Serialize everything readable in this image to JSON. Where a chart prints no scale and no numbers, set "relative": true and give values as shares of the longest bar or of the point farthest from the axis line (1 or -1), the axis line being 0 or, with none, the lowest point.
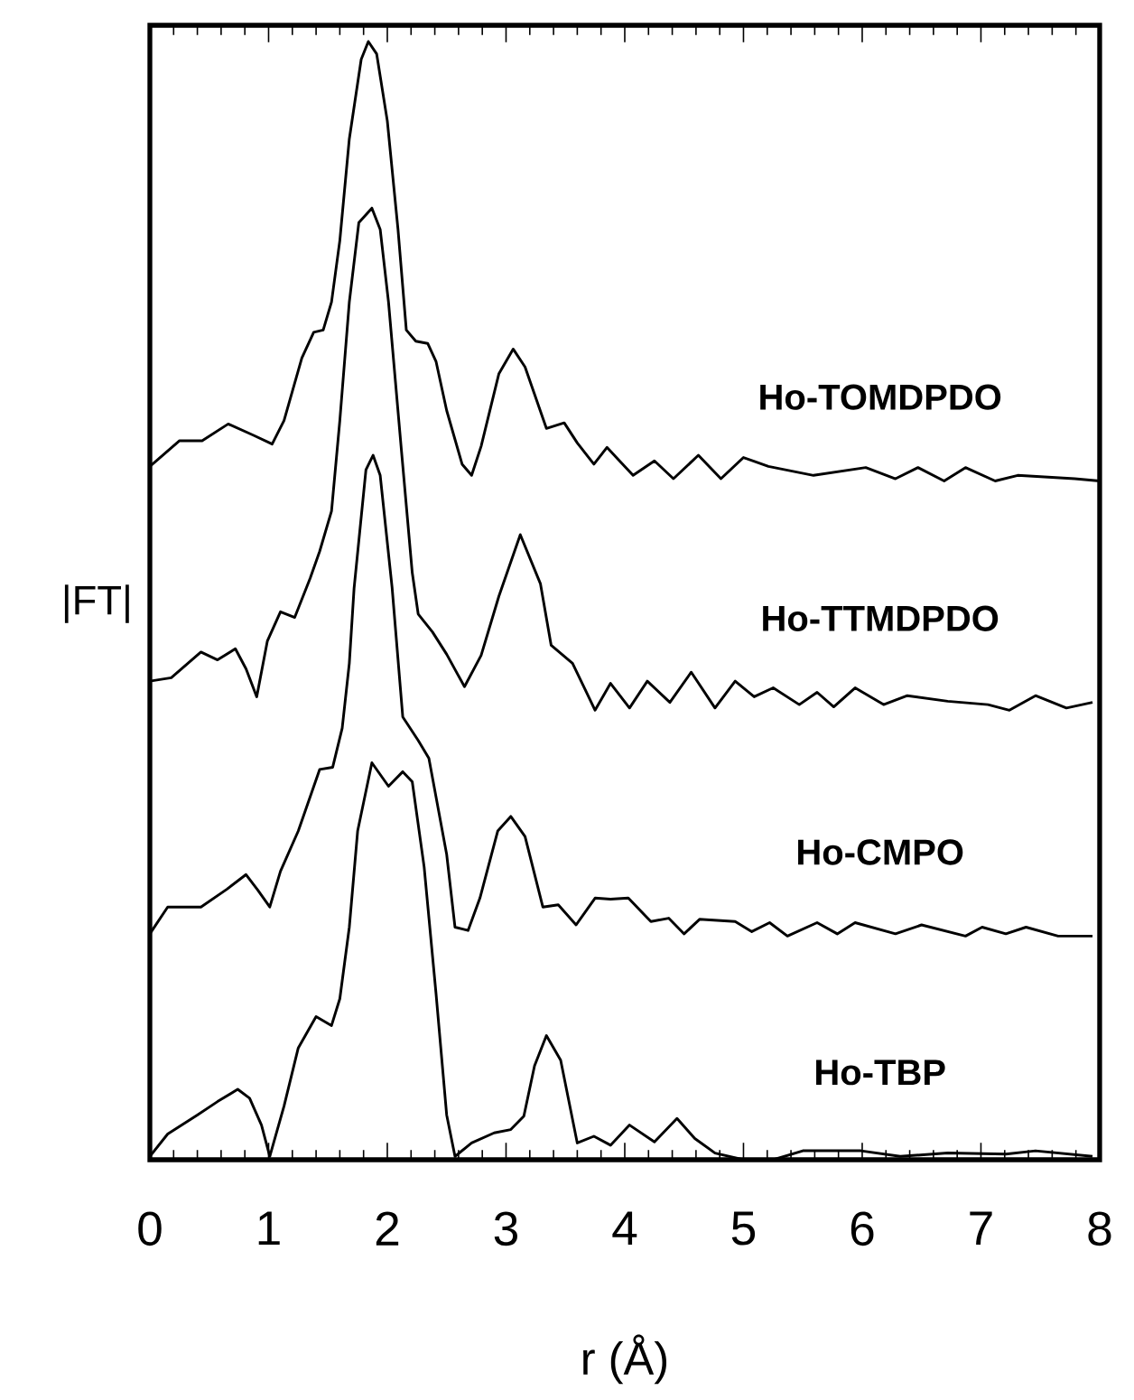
{
  "chart_data": {
    "type": "line",
    "relative": true,
    "xlabel": "r (Å)",
    "ylabel": "|FT|",
    "xlim": [
      0,
      8
    ],
    "xticks": [
      0,
      1,
      2,
      3,
      4,
      5,
      6,
      7,
      8
    ],
    "tick_labels": "x",
    "marker": "none",
    "line_style": "solid",
    "series": [
      {
        "name": "Ho-TOMDPDO",
        "color": "#000000",
        "x": [
          0.0,
          0.25,
          0.44,
          0.66,
          0.87,
          1.03,
          1.13,
          1.28,
          1.38,
          1.46,
          1.53,
          1.6,
          1.68,
          1.78,
          1.84,
          1.91,
          2.0,
          2.09,
          2.16,
          2.24,
          2.34,
          2.41,
          2.5,
          2.63,
          2.71,
          2.79,
          2.94,
          3.06,
          3.16,
          3.34,
          3.49,
          3.6,
          3.74,
          3.85,
          4.07,
          4.25,
          4.41,
          4.62,
          4.81,
          5.0,
          5.21,
          5.59,
          6.03,
          6.28,
          6.47,
          6.69,
          6.87,
          7.12,
          7.31,
          7.79,
          8.0
        ],
        "values": [
          0.62,
          0.643,
          0.643,
          0.658,
          0.648,
          0.64,
          0.661,
          0.717,
          0.74,
          0.742,
          0.767,
          0.822,
          0.913,
          0.984,
          1.0,
          0.989,
          0.929,
          0.832,
          0.742,
          0.732,
          0.73,
          0.714,
          0.67,
          0.622,
          0.612,
          0.638,
          0.703,
          0.725,
          0.709,
          0.654,
          0.659,
          0.641,
          0.622,
          0.637,
          0.612,
          0.625,
          0.609,
          0.63,
          0.609,
          0.628,
          0.62,
          0.612,
          0.619,
          0.609,
          0.619,
          0.607,
          0.619,
          0.607,
          0.612,
          0.609,
          0.607
        ]
      },
      {
        "name": "Ho-TTMDPDO",
        "color": "#000000",
        "x": [
          0.0,
          0.18,
          0.43,
          0.57,
          0.72,
          0.81,
          0.9,
          0.99,
          1.1,
          1.22,
          1.35,
          1.43,
          1.53,
          1.6,
          1.68,
          1.76,
          1.87,
          1.94,
          2.01,
          2.12,
          2.21,
          2.26,
          2.38,
          2.5,
          2.65,
          2.79,
          2.94,
          3.12,
          3.29,
          3.38,
          3.56,
          3.75,
          3.88,
          4.04,
          4.19,
          4.38,
          4.56,
          4.76,
          4.93,
          5.09,
          5.25,
          5.47,
          5.62,
          5.76,
          5.94,
          6.18,
          6.38,
          6.72,
          7.06,
          7.24,
          7.46,
          7.72,
          7.94
        ],
        "values": [
          0.428,
          0.431,
          0.454,
          0.447,
          0.457,
          0.439,
          0.414,
          0.464,
          0.49,
          0.485,
          0.52,
          0.544,
          0.58,
          0.661,
          0.767,
          0.838,
          0.851,
          0.832,
          0.767,
          0.633,
          0.525,
          0.488,
          0.472,
          0.452,
          0.423,
          0.451,
          0.504,
          0.559,
          0.515,
          0.46,
          0.444,
          0.402,
          0.426,
          0.404,
          0.428,
          0.409,
          0.436,
          0.404,
          0.428,
          0.414,
          0.422,
          0.407,
          0.418,
          0.405,
          0.422,
          0.407,
          0.415,
          0.41,
          0.407,
          0.402,
          0.415,
          0.404,
          0.409
        ]
      },
      {
        "name": "Ho-CMPO",
        "color": "#000000",
        "x": [
          0.0,
          0.15,
          0.43,
          0.65,
          0.81,
          0.91,
          1.01,
          1.1,
          1.25,
          1.43,
          1.54,
          1.62,
          1.68,
          1.72,
          1.82,
          1.88,
          1.94,
          2.04,
          2.13,
          2.26,
          2.35,
          2.5,
          2.57,
          2.68,
          2.78,
          2.93,
          3.04,
          3.16,
          3.31,
          3.44,
          3.59,
          3.75,
          3.88,
          4.03,
          4.22,
          4.37,
          4.5,
          4.63,
          4.93,
          5.07,
          5.22,
          5.37,
          5.62,
          5.79,
          5.94,
          6.28,
          6.5,
          6.87,
          7.01,
          7.21,
          7.38,
          7.65,
          7.94
        ],
        "values": [
          0.202,
          0.226,
          0.226,
          0.242,
          0.255,
          0.241,
          0.226,
          0.258,
          0.294,
          0.349,
          0.351,
          0.386,
          0.444,
          0.511,
          0.617,
          0.63,
          0.612,
          0.512,
          0.396,
          0.375,
          0.359,
          0.273,
          0.208,
          0.205,
          0.234,
          0.294,
          0.307,
          0.289,
          0.226,
          0.228,
          0.21,
          0.234,
          0.233,
          0.234,
          0.213,
          0.216,
          0.202,
          0.215,
          0.213,
          0.204,
          0.212,
          0.2,
          0.212,
          0.202,
          0.212,
          0.202,
          0.21,
          0.2,
          0.208,
          0.202,
          0.208,
          0.2,
          0.2
        ]
      },
      {
        "name": "Ho-TBP",
        "color": "#000000",
        "x": [
          0.0,
          0.15,
          0.4,
          0.57,
          0.74,
          0.84,
          0.94,
          1.01,
          1.13,
          1.25,
          1.4,
          1.53,
          1.6,
          1.68,
          1.75,
          1.87,
          2.01,
          2.13,
          2.21,
          2.31,
          2.41,
          2.5,
          2.57,
          2.71,
          2.9,
          3.04,
          3.15,
          3.24,
          3.34,
          3.46,
          3.6,
          3.74,
          3.88,
          4.04,
          4.25,
          4.44,
          4.59,
          4.76,
          5.0,
          5.25,
          5.5,
          5.99,
          6.32,
          6.72,
          7.21,
          7.46,
          7.94
        ],
        "values": [
          0.003,
          0.023,
          0.04,
          0.052,
          0.063,
          0.055,
          0.031,
          0.003,
          0.048,
          0.1,
          0.128,
          0.12,
          0.144,
          0.208,
          0.294,
          0.355,
          0.334,
          0.347,
          0.338,
          0.262,
          0.149,
          0.04,
          0.003,
          0.015,
          0.024,
          0.027,
          0.039,
          0.084,
          0.111,
          0.089,
          0.015,
          0.021,
          0.013,
          0.031,
          0.016,
          0.037,
          0.019,
          0.006,
          0.0,
          0.0,
          0.008,
          0.008,
          0.003,
          0.006,
          0.005,
          0.008,
          0.003
        ]
      }
    ]
  }
}
